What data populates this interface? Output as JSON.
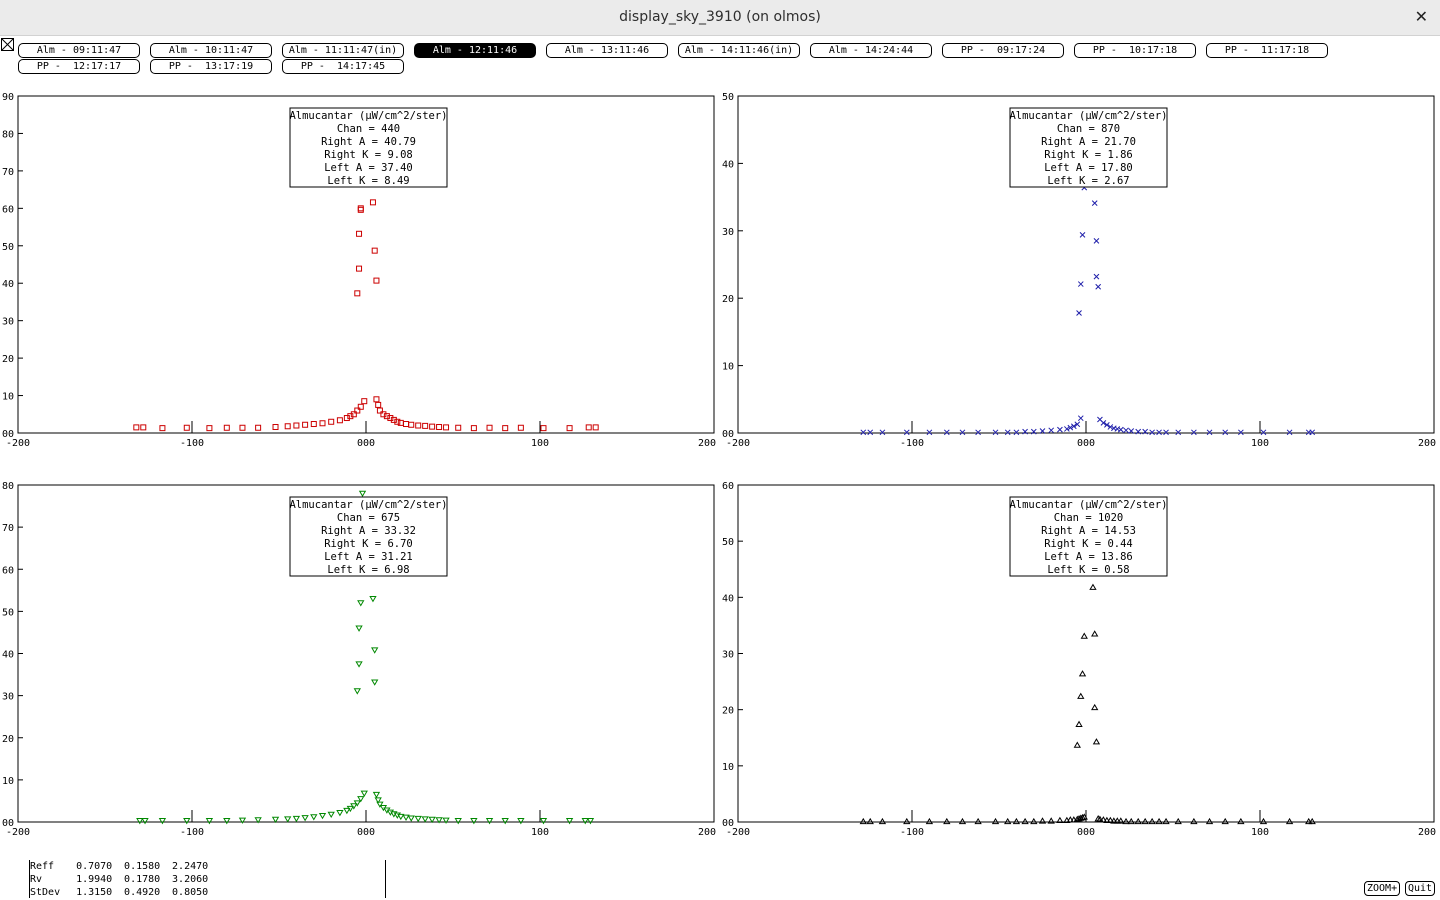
{
  "window": {
    "title": "display_sky_3910 (on olmos)",
    "close_glyph": "✕"
  },
  "tabs": [
    {
      "label": "Alm - 09:11:47",
      "selected": false
    },
    {
      "label": "Alm - 10:11:47",
      "selected": false
    },
    {
      "label": "Alm - 11:11:47(in)",
      "selected": false
    },
    {
      "label": "Alm - 12:11:46",
      "selected": true
    },
    {
      "label": "Alm - 13:11:46",
      "selected": false
    },
    {
      "label": "Alm - 14:11:46(in)",
      "selected": false
    },
    {
      "label": "Alm - 14:24:44",
      "selected": false
    },
    {
      "label": "PP -  09:17:24",
      "selected": false
    },
    {
      "label": "PP -  10:17:18",
      "selected": false
    },
    {
      "label": "PP -  11:17:18",
      "selected": false
    },
    {
      "label": "PP -  12:17:17",
      "selected": false
    },
    {
      "label": "PP -  13:17:19",
      "selected": false
    },
    {
      "label": "PP -  14:17:45",
      "selected": false
    }
  ],
  "chart_data": [
    {
      "type": "scatter",
      "marker": "square",
      "color": "#cc0000",
      "xlim": [
        -200,
        200
      ],
      "ylim": [
        0,
        90
      ],
      "xticks": [
        "-200",
        "-100",
        "000",
        "100",
        "200"
      ],
      "yticks": [
        "00",
        "10",
        "20",
        "30",
        "40",
        "50",
        "60",
        "70",
        "80",
        "90"
      ],
      "legend": [
        "Almucantar (µW/cm^2/ster)",
        "Chan = 440",
        "Right A = 40.79",
        "Right K = 9.08",
        "Left A = 37.40",
        "Left K = 8.49"
      ],
      "x": [
        -132,
        -128,
        -117,
        -103,
        -90,
        -80,
        -71,
        -62,
        -52,
        -45,
        -40,
        -35,
        -30,
        -25,
        -20,
        -15,
        -11,
        -9,
        -7,
        -5,
        -3,
        -1,
        -5,
        -4,
        -4,
        -3,
        -3,
        4,
        5,
        6,
        6,
        7,
        8,
        10,
        12,
        14,
        16,
        18,
        20,
        23,
        26,
        30,
        34,
        38,
        42,
        46,
        53,
        62,
        71,
        80,
        89,
        102,
        117,
        128,
        132
      ],
      "y": [
        1.5,
        1.5,
        1.3,
        1.4,
        1.3,
        1.4,
        1.4,
        1.4,
        1.6,
        1.8,
        2.0,
        2.2,
        2.4,
        2.6,
        3.0,
        3.4,
        4.0,
        4.5,
        5.0,
        6.0,
        7.0,
        8.5,
        37.3,
        43.9,
        53.2,
        59.6,
        60.0,
        61.6,
        48.7,
        40.7,
        9.0,
        7.5,
        6.0,
        5.0,
        4.5,
        4.0,
        3.5,
        3.0,
        2.7,
        2.4,
        2.2,
        2.0,
        1.9,
        1.7,
        1.6,
        1.5,
        1.4,
        1.3,
        1.4,
        1.3,
        1.4,
        1.3,
        1.3,
        1.5,
        1.5
      ]
    },
    {
      "type": "scatter",
      "marker": "cross",
      "color": "#1f1faa",
      "xlim": [
        -200,
        200
      ],
      "ylim": [
        0,
        50
      ],
      "xticks": [
        "-200",
        "-100",
        "000",
        "100",
        "200"
      ],
      "yticks": [
        "00",
        "10",
        "20",
        "30",
        "40",
        "50"
      ],
      "legend": [
        "Almucantar (µW/cm^2/ster)",
        "Chan = 870",
        "Right A = 21.70",
        "Right K = 1.86",
        "Left A = 17.80",
        "Left K = 2.67"
      ],
      "x": [
        -128,
        -124,
        -117,
        -103,
        -90,
        -80,
        -71,
        -62,
        -52,
        -45,
        -40,
        -35,
        -30,
        -25,
        -20,
        -15,
        -11,
        -9,
        -7,
        -5,
        -3,
        -4,
        -3,
        -2,
        -1,
        5,
        6,
        6,
        7,
        8,
        10,
        12,
        14,
        16,
        18,
        20,
        23,
        26,
        30,
        34,
        38,
        42,
        46,
        53,
        62,
        71,
        80,
        89,
        102,
        117,
        128,
        130
      ],
      "y": [
        0.1,
        0.1,
        0.1,
        0.1,
        0.1,
        0.1,
        0.1,
        0.1,
        0.1,
        0.1,
        0.1,
        0.2,
        0.2,
        0.3,
        0.4,
        0.5,
        0.6,
        0.8,
        1.0,
        1.3,
        2.2,
        17.8,
        22.1,
        29.4,
        36.4,
        34.1,
        28.5,
        23.2,
        21.7,
        2.0,
        1.5,
        1.2,
        0.9,
        0.7,
        0.6,
        0.5,
        0.4,
        0.3,
        0.2,
        0.2,
        0.1,
        0.1,
        0.1,
        0.1,
        0.1,
        0.1,
        0.1,
        0.1,
        0.1,
        0.1,
        0.1,
        0.1
      ]
    },
    {
      "type": "scatter",
      "marker": "triangle-down",
      "color": "#008800",
      "xlim": [
        -200,
        200
      ],
      "ylim": [
        0,
        80
      ],
      "xticks": [
        "-200",
        "-100",
        "000",
        "100",
        "200"
      ],
      "yticks": [
        "00",
        "10",
        "20",
        "30",
        "40",
        "50",
        "60",
        "70",
        "80"
      ],
      "legend": [
        "Almucantar (µW/cm^2/ster)",
        "Chan = 675",
        "Right A = 33.32",
        "Right K = 6.70",
        "Left A = 31.21",
        "Left K = 6.98"
      ],
      "x": [
        -130,
        -127,
        -117,
        -103,
        -90,
        -80,
        -71,
        -62,
        -52,
        -45,
        -40,
        -35,
        -30,
        -25,
        -20,
        -15,
        -11,
        -9,
        -7,
        -5,
        -3,
        -1,
        -5,
        -4,
        -4,
        -3,
        -2,
        4,
        5,
        5,
        6,
        7,
        8,
        10,
        12,
        14,
        16,
        18,
        20,
        23,
        26,
        30,
        34,
        38,
        42,
        46,
        53,
        62,
        71,
        80,
        89,
        102,
        117,
        126,
        129
      ],
      "y": [
        0.3,
        0.3,
        0.3,
        0.3,
        0.3,
        0.3,
        0.4,
        0.5,
        0.6,
        0.7,
        0.8,
        1.0,
        1.2,
        1.5,
        1.8,
        2.2,
        2.7,
        3.2,
        3.8,
        4.5,
        5.5,
        6.8,
        31.1,
        37.5,
        46.0,
        52.0,
        78.0,
        53.0,
        40.8,
        33.2,
        6.5,
        5.2,
        4.2,
        3.4,
        2.8,
        2.3,
        1.9,
        1.6,
        1.3,
        1.1,
        0.9,
        0.8,
        0.7,
        0.6,
        0.5,
        0.4,
        0.3,
        0.3,
        0.3,
        0.3,
        0.3,
        0.3,
        0.3,
        0.3,
        0.3
      ]
    },
    {
      "type": "scatter",
      "marker": "triangle-up",
      "color": "#000000",
      "xlim": [
        -200,
        200
      ],
      "ylim": [
        0,
        60
      ],
      "xticks": [
        "-200",
        "-100",
        "000",
        "100",
        "200"
      ],
      "yticks": [
        "00",
        "10",
        "20",
        "30",
        "40",
        "50",
        "60"
      ],
      "legend": [
        "Almucantar (µW/cm^2/ster)",
        "Chan = 1020",
        "Right A = 14.53",
        "Right K = 0.44",
        "Left A = 13.86",
        "Left K = 0.58"
      ],
      "x": [
        -128,
        -124,
        -117,
        -103,
        -90,
        -80,
        -71,
        -62,
        -52,
        -45,
        -40,
        -35,
        -30,
        -25,
        -20,
        -15,
        -11,
        -9,
        -7,
        -5,
        -4,
        -3,
        -2,
        -1,
        -5,
        -4,
        -3,
        -2,
        -1,
        4,
        5,
        5,
        6,
        7,
        8,
        10,
        12,
        14,
        16,
        18,
        20,
        23,
        26,
        30,
        34,
        38,
        42,
        46,
        53,
        62,
        71,
        80,
        89,
        102,
        117,
        128,
        130
      ],
      "y": [
        0.1,
        0.1,
        0.1,
        0.1,
        0.1,
        0.1,
        0.1,
        0.1,
        0.1,
        0.1,
        0.1,
        0.1,
        0.1,
        0.2,
        0.2,
        0.3,
        0.3,
        0.4,
        0.4,
        0.5,
        0.6,
        0.7,
        0.8,
        0.9,
        13.7,
        17.4,
        22.4,
        26.4,
        33.1,
        41.8,
        33.5,
        20.4,
        14.3,
        0.6,
        0.5,
        0.4,
        0.3,
        0.3,
        0.2,
        0.2,
        0.2,
        0.1,
        0.1,
        0.1,
        0.1,
        0.1,
        0.1,
        0.1,
        0.1,
        0.1,
        0.1,
        0.1,
        0.1,
        0.1,
        0.1,
        0.1,
        0.1
      ]
    }
  ],
  "stats": {
    "rows": [
      {
        "label": "Reff",
        "v1": "0.7070",
        "v2": "0.1580",
        "v3": "2.2470"
      },
      {
        "label": "Rv",
        "v1": "1.9940",
        "v2": "0.1780",
        "v3": "3.2060"
      },
      {
        "label": "StDev",
        "v1": "1.3150",
        "v2": "0.4920",
        "v3": "0.8050"
      }
    ]
  },
  "buttons": {
    "zoom": "ZOOM+",
    "quit": "Quit"
  }
}
